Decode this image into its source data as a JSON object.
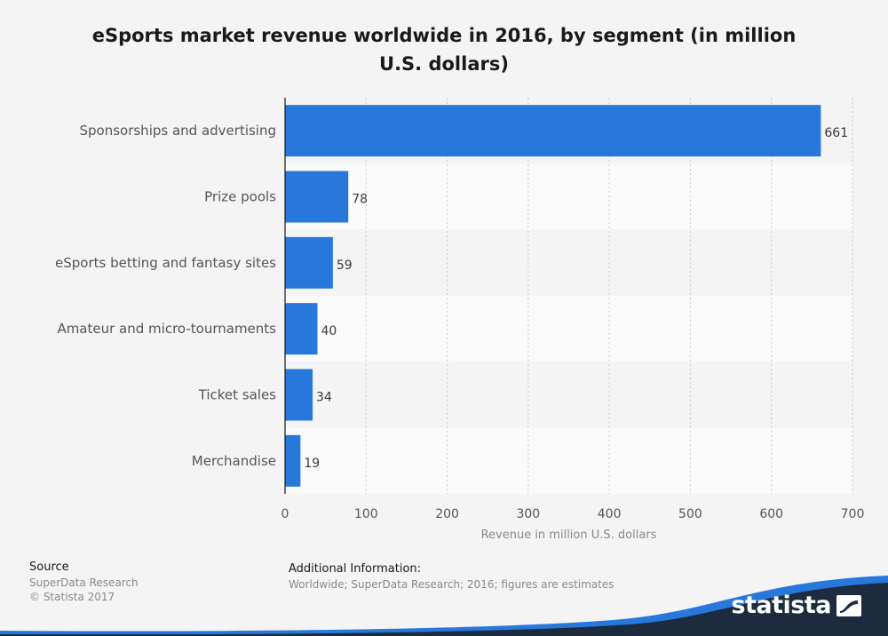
{
  "chart_data": {
    "type": "bar",
    "orientation": "horizontal",
    "title": "eSports market revenue worldwide in 2016, by segment (in million U.S. dollars)",
    "xlabel": "Revenue in million U.S. dollars",
    "ylabel": "",
    "xlim": [
      0,
      700
    ],
    "xticks": [
      0,
      100,
      200,
      300,
      400,
      500,
      600,
      700
    ],
    "categories": [
      "Sponsorships and advertising",
      "Prize pools",
      "eSports betting and fantasy sites",
      "Amateur and micro-tournaments",
      "Ticket sales",
      "Merchandise"
    ],
    "values": [
      661,
      78,
      59,
      40,
      34,
      19
    ],
    "data_labels": [
      "661",
      "78",
      "59",
      "40",
      "34",
      "19"
    ],
    "grid": "vertical dotted",
    "legend": "none",
    "bar_color": "#2878dc"
  },
  "footer": {
    "source_heading": "Source",
    "source_lines": [
      "SuperData Research",
      "© Statista 2017"
    ],
    "info_heading": "Additional Information:",
    "info_text": "Worldwide; SuperData Research; 2016; figures are estimates"
  },
  "brand": {
    "name": "statista",
    "icon": "statista-logo-icon",
    "wave_color": "#1d2b3e",
    "accent_color": "#2878dc"
  }
}
